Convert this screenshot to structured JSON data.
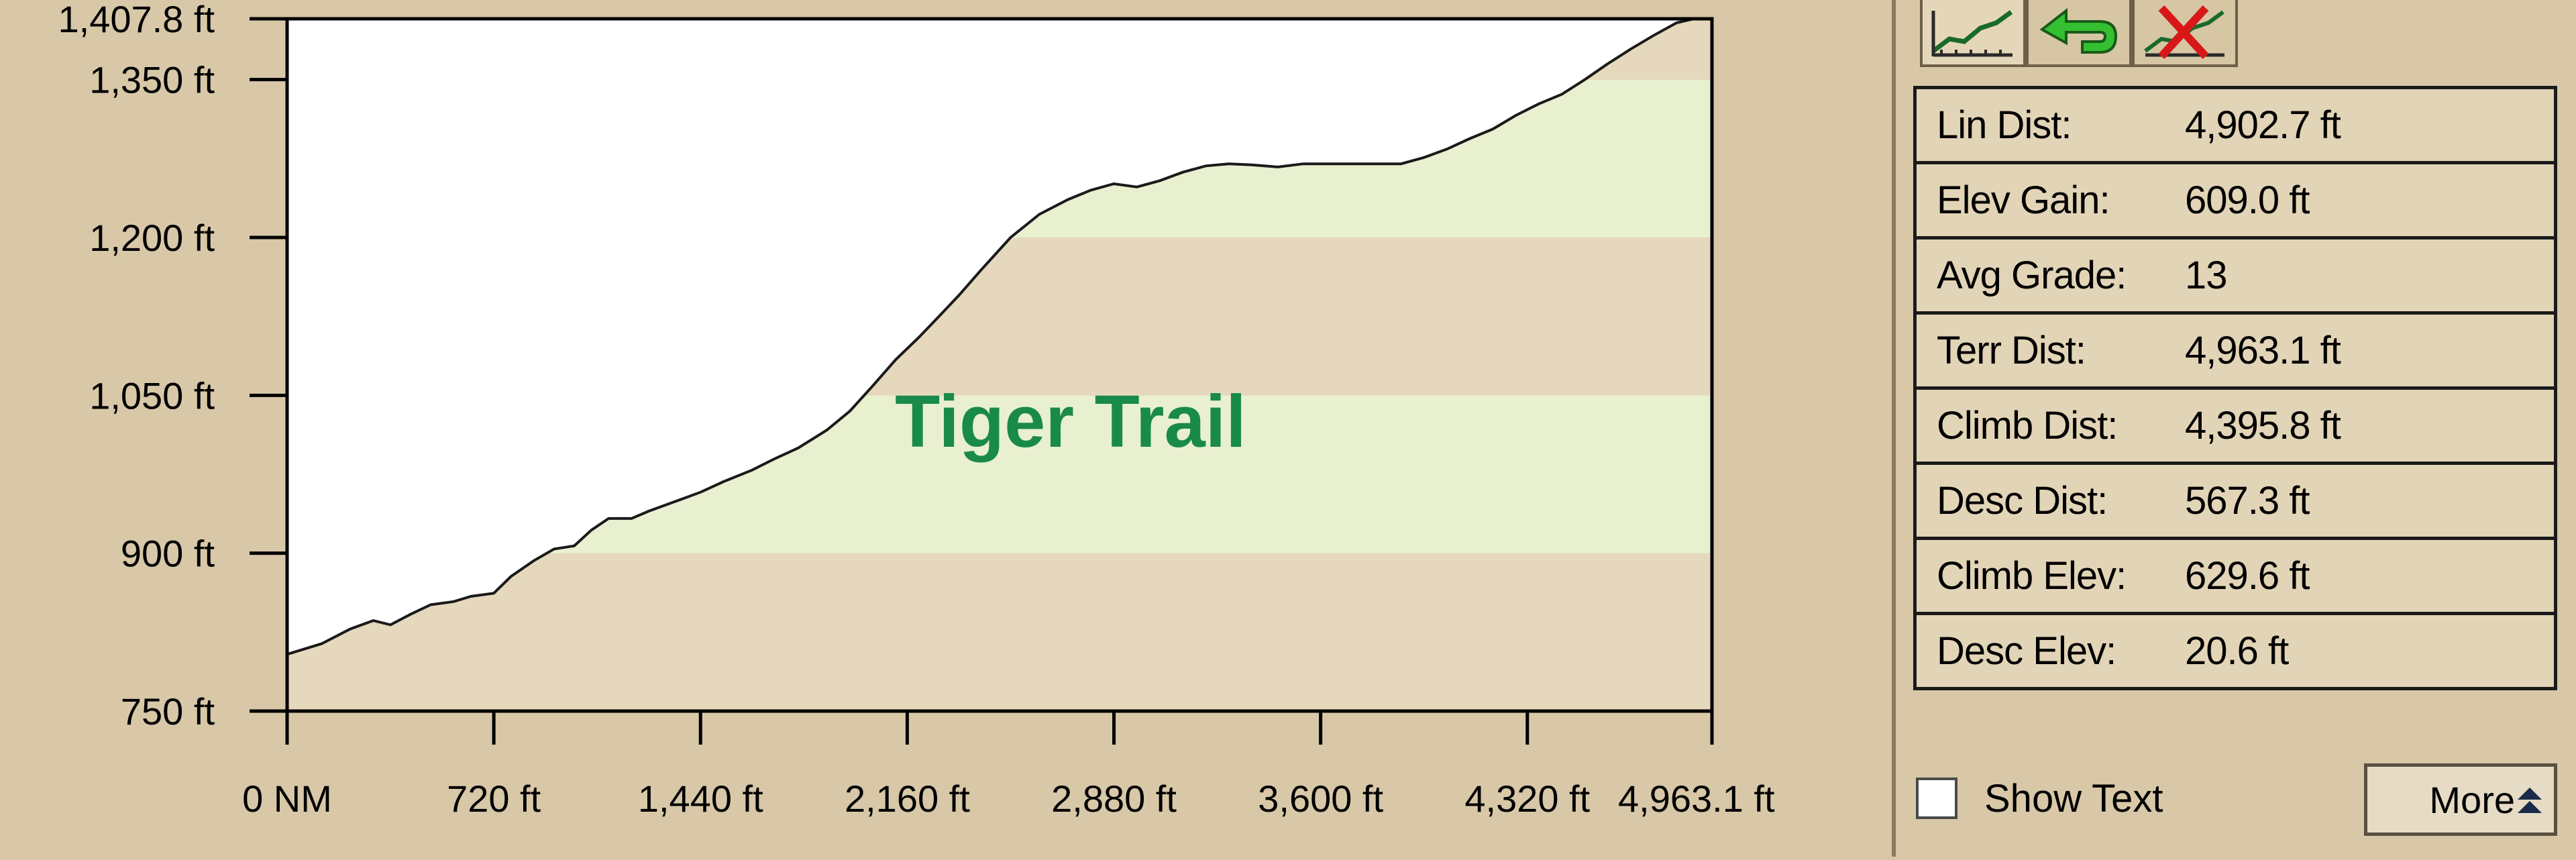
{
  "chart_data": {
    "type": "area",
    "title": "Tiger Trail",
    "y_ticks": [
      "750 ft",
      "900 ft",
      "1,050 ft",
      "1,200 ft",
      "1,350 ft",
      "1,407.8 ft"
    ],
    "y_tick_values": [
      750,
      900,
      1050,
      1200,
      1350,
      1407.8
    ],
    "x_ticks": [
      "0 NM",
      "720 ft",
      "1,440 ft",
      "2,160 ft",
      "2,880 ft",
      "3,600 ft",
      "4,320 ft",
      "4,963.1 ft"
    ],
    "x_tick_values": [
      0,
      720,
      1440,
      2160,
      2880,
      3600,
      4320,
      4963.1
    ],
    "xlim": [
      0,
      4963.1
    ],
    "ylim": [
      750,
      1407.8
    ],
    "band_colors": [
      "#e6d8bc",
      "#e8f0d0"
    ],
    "fill_color": "#ffffff",
    "title_color": "#1a8a4a",
    "profile": [
      [
        0,
        804
      ],
      [
        120,
        814
      ],
      [
        220,
        828
      ],
      [
        300,
        836
      ],
      [
        360,
        832
      ],
      [
        430,
        842
      ],
      [
        500,
        851
      ],
      [
        580,
        854
      ],
      [
        640,
        859
      ],
      [
        720,
        862
      ],
      [
        780,
        878
      ],
      [
        860,
        893
      ],
      [
        930,
        904
      ],
      [
        1000,
        907
      ],
      [
        1060,
        922
      ],
      [
        1120,
        933
      ],
      [
        1200,
        933
      ],
      [
        1260,
        940
      ],
      [
        1340,
        948
      ],
      [
        1440,
        958
      ],
      [
        1520,
        968
      ],
      [
        1620,
        979
      ],
      [
        1700,
        990
      ],
      [
        1780,
        1000
      ],
      [
        1880,
        1017
      ],
      [
        1960,
        1035
      ],
      [
        2040,
        1059
      ],
      [
        2120,
        1084
      ],
      [
        2200,
        1105
      ],
      [
        2260,
        1122
      ],
      [
        2340,
        1145
      ],
      [
        2420,
        1170
      ],
      [
        2520,
        1200
      ],
      [
        2620,
        1222
      ],
      [
        2720,
        1236
      ],
      [
        2800,
        1245
      ],
      [
        2880,
        1251
      ],
      [
        2960,
        1248
      ],
      [
        3040,
        1254
      ],
      [
        3120,
        1262
      ],
      [
        3200,
        1268
      ],
      [
        3280,
        1270
      ],
      [
        3360,
        1269
      ],
      [
        3450,
        1267
      ],
      [
        3540,
        1270
      ],
      [
        3630,
        1270
      ],
      [
        3720,
        1270
      ],
      [
        3800,
        1270
      ],
      [
        3880,
        1270
      ],
      [
        3960,
        1276
      ],
      [
        4040,
        1284
      ],
      [
        4120,
        1294
      ],
      [
        4200,
        1303
      ],
      [
        4280,
        1316
      ],
      [
        4360,
        1327
      ],
      [
        4440,
        1336
      ],
      [
        4520,
        1350
      ],
      [
        4600,
        1365
      ],
      [
        4680,
        1379
      ],
      [
        4760,
        1392
      ],
      [
        4840,
        1404
      ],
      [
        4900,
        1407.8
      ],
      [
        4963.1,
        1407.8
      ]
    ]
  },
  "toolbar": {
    "buttons": [
      {
        "name": "profile-view-icon"
      },
      {
        "name": "back-arrow-icon"
      },
      {
        "name": "delete-profile-icon"
      }
    ]
  },
  "stats": [
    {
      "label": "Lin Dist:",
      "value": "4,902.7 ft"
    },
    {
      "label": "Elev Gain:",
      "value": "609.0 ft"
    },
    {
      "label": "Avg Grade:",
      "value": "13"
    },
    {
      "label": "Terr Dist:",
      "value": "4,963.1 ft"
    },
    {
      "label": "Climb Dist:",
      "value": "4,395.8 ft"
    },
    {
      "label": "Desc Dist:",
      "value": "567.3 ft"
    },
    {
      "label": "Climb Elev:",
      "value": "629.6 ft"
    },
    {
      "label": "Desc Elev:",
      "value": "20.6 ft"
    }
  ],
  "show_text": {
    "label": "Show Text",
    "checked": false
  },
  "more_button": {
    "label": "More"
  }
}
